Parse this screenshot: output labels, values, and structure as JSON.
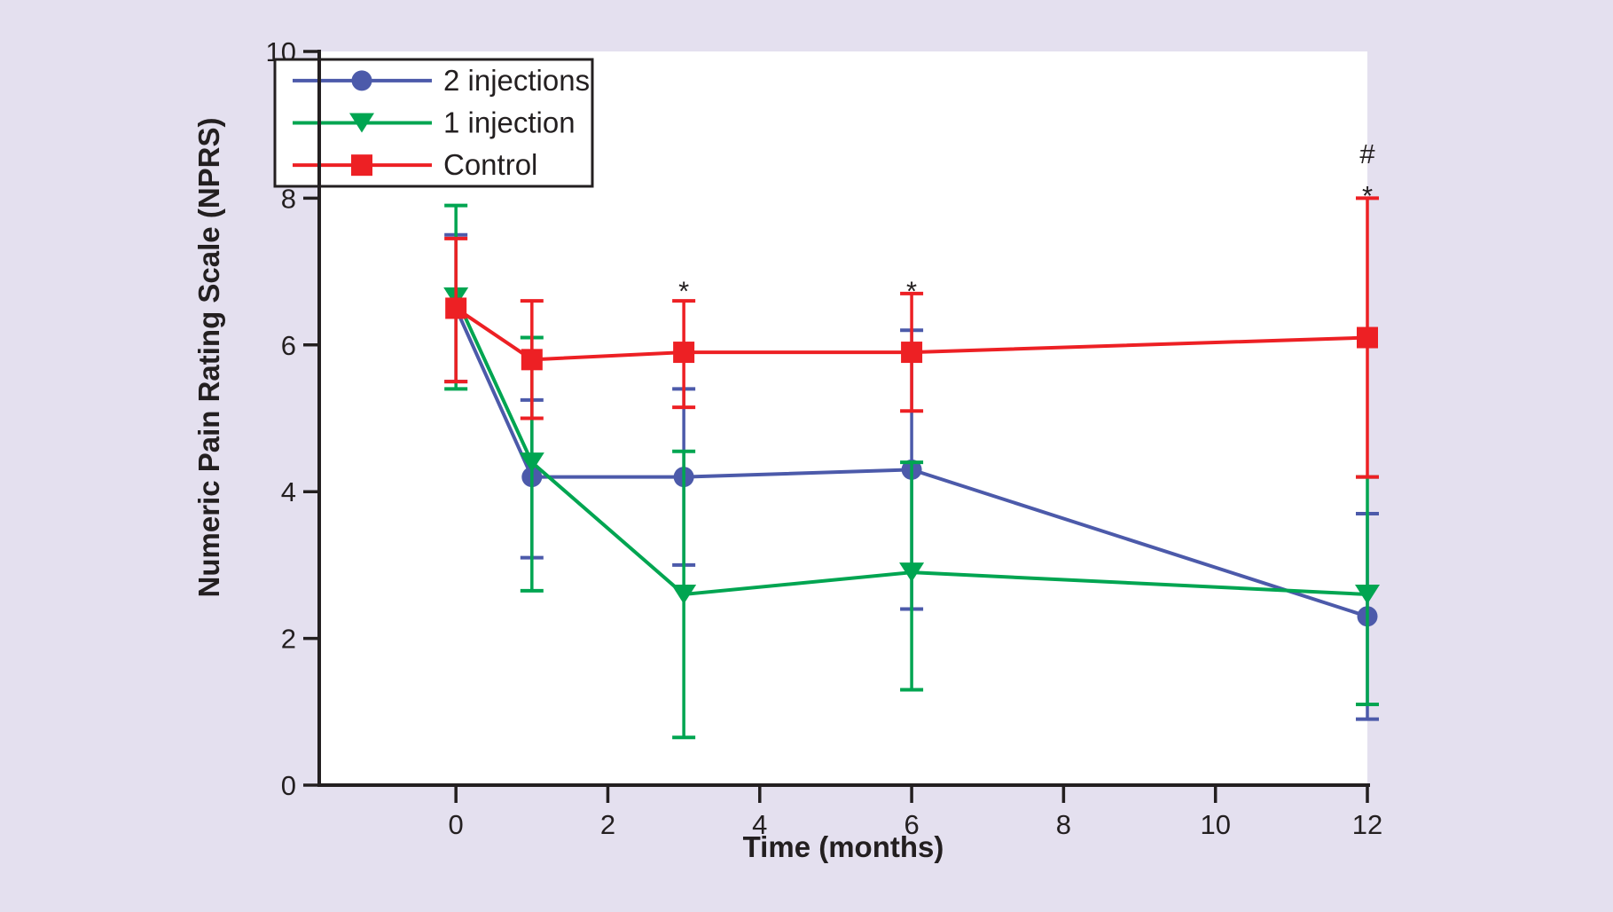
{
  "figure": {
    "background_color": "#e4e0ef",
    "plot_background": "#ffffff",
    "axis_color": "#231f20"
  },
  "chart_data": {
    "type": "line",
    "title": "",
    "xlabel": "Time (months)",
    "ylabel": "Numeric Pain Rating Scale (NPRS)",
    "x_months": [
      0,
      1,
      3,
      6,
      12
    ],
    "xticks": [
      "0",
      "2",
      "4",
      "6",
      "8",
      "10",
      "12"
    ],
    "xtick_values": [
      0,
      2,
      4,
      6,
      8,
      10,
      12
    ],
    "yticks": [
      "0",
      "2",
      "4",
      "6",
      "8",
      "10"
    ],
    "ytick_values": [
      0,
      2,
      4,
      6,
      8,
      10
    ],
    "xlim": [
      -1.8,
      12
    ],
    "ylim": [
      0,
      10
    ],
    "grid": false,
    "legend_position": "top-left",
    "series": [
      {
        "name": "2 injections",
        "color": "#4c5aaa",
        "marker": "circle",
        "values": [
          6.5,
          4.2,
          4.2,
          4.3,
          2.3
        ],
        "err_low": [
          5.5,
          3.1,
          3.0,
          2.4,
          0.9
        ],
        "err_high": [
          7.5,
          5.25,
          5.4,
          6.2,
          3.7
        ]
      },
      {
        "name": "1 injection",
        "color": "#00a551",
        "marker": "triangle-down",
        "values": [
          6.65,
          4.4,
          2.6,
          2.9,
          2.6
        ],
        "err_low": [
          5.4,
          2.65,
          0.65,
          1.3,
          1.1
        ],
        "err_high": [
          7.9,
          6.1,
          4.55,
          4.4,
          4.2
        ]
      },
      {
        "name": "Control",
        "color": "#ed2024",
        "marker": "square",
        "values": [
          6.5,
          5.8,
          5.9,
          5.9,
          6.1
        ],
        "err_low": [
          5.5,
          5.0,
          5.15,
          5.1,
          4.2
        ],
        "err_high": [
          7.45,
          6.6,
          6.6,
          6.7,
          8.0
        ]
      }
    ],
    "annotations": [
      {
        "text": "*",
        "month": 3,
        "value": 6.9
      },
      {
        "text": "*",
        "month": 6,
        "value": 6.9
      },
      {
        "text": "#",
        "month": 12,
        "value": 8.6
      },
      {
        "text": "*",
        "month": 12,
        "value": 8.2
      }
    ]
  }
}
